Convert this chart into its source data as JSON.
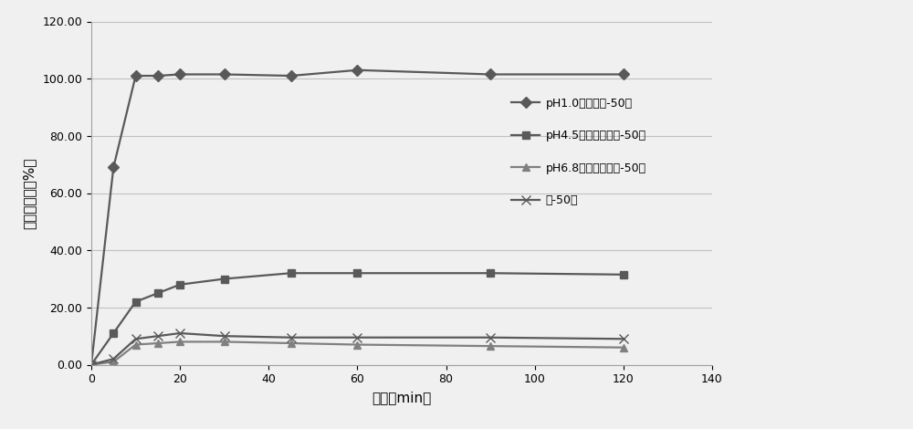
{
  "series": [
    {
      "label": "pH1.0盐酸溶液-50转",
      "x": [
        0,
        5,
        10,
        15,
        20,
        30,
        45,
        60,
        90,
        120
      ],
      "y": [
        0,
        69,
        101,
        101,
        101.5,
        101.5,
        101,
        103,
        101.5,
        101.5
      ],
      "color": "#595959",
      "marker": "D",
      "markersize": 6,
      "linewidth": 1.6
    },
    {
      "label": "pH4.5醒酸盐缓冲液-50转",
      "x": [
        0,
        5,
        10,
        15,
        20,
        30,
        45,
        60,
        90,
        120
      ],
      "y": [
        0,
        11,
        22,
        25,
        28,
        30,
        32,
        32,
        32,
        31.5
      ],
      "color": "#595959",
      "marker": "s",
      "markersize": 6,
      "linewidth": 1.6
    },
    {
      "label": "pH6.8磷酸盐缓冲液-50转",
      "x": [
        0,
        5,
        10,
        15,
        20,
        30,
        45,
        60,
        90,
        120
      ],
      "y": [
        0,
        1,
        7,
        7.5,
        8,
        8,
        7.5,
        7,
        6.5,
        6
      ],
      "color": "#808080",
      "marker": "^",
      "markersize": 6,
      "linewidth": 1.6
    },
    {
      "label": "水-50转",
      "x": [
        0,
        5,
        10,
        15,
        20,
        30,
        45,
        60,
        90,
        120
      ],
      "y": [
        0,
        2,
        9,
        10,
        11,
        10,
        9.5,
        9.5,
        9.5,
        9
      ],
      "color": "#595959",
      "marker": "x",
      "markersize": 7,
      "linewidth": 1.6
    }
  ],
  "xlabel": "时间（min）",
  "ylabel": "累计溶出度（%）",
  "xlim": [
    0,
    140
  ],
  "ylim": [
    0,
    120
  ],
  "xticks": [
    0,
    20,
    40,
    60,
    80,
    100,
    120,
    140
  ],
  "yticks": [
    0.0,
    20.0,
    40.0,
    60.0,
    80.0,
    100.0,
    120.0
  ],
  "ytick_labels": [
    "0.00",
    "20.00",
    "40.00",
    "60.00",
    "80.00",
    "100.00",
    "120.00"
  ],
  "grid_color": "#c0c0c0",
  "background_color": "#f0f0f0",
  "legend_fontsize": 9,
  "axis_fontsize": 11,
  "tick_fontsize": 9
}
